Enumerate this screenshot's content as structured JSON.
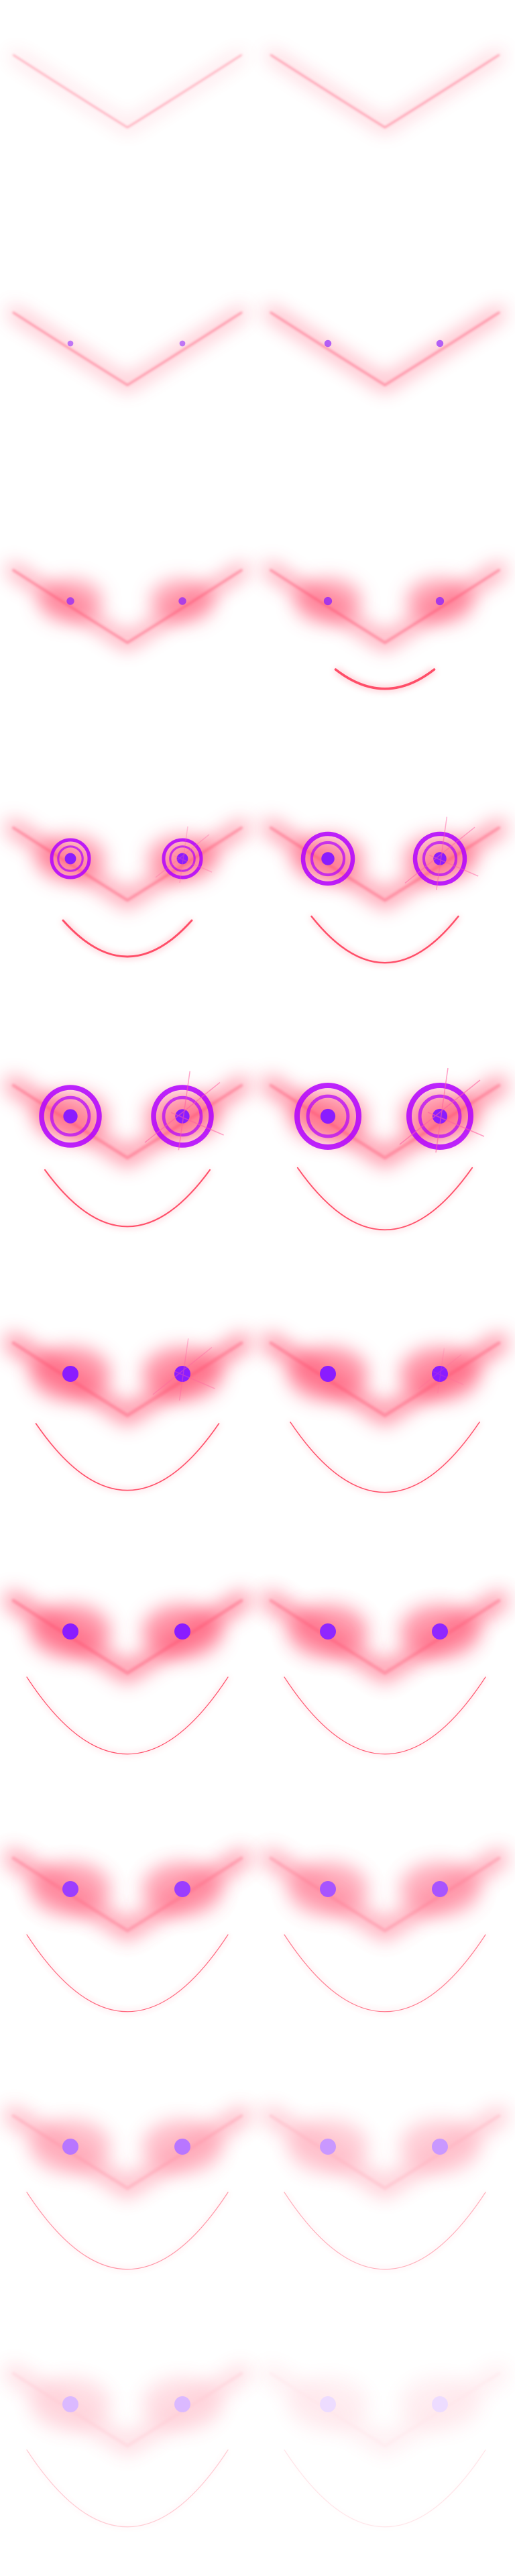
{
  "sheet": {
    "layout": "sprite-sheet",
    "columns": 2,
    "rows": 10,
    "frame_count": 20
  },
  "colors": {
    "background": "#ffffff",
    "glow": "#ff4d6d",
    "eye": "#8a1cff",
    "ring": "#b000ff",
    "smile": "#ff3d5a",
    "sparkle": "#ff5fa0"
  },
  "frames": [
    {
      "index": 1,
      "brow": 0.2,
      "eye_dot": 0.0,
      "ring": 0.0,
      "smile": 0.0,
      "sparkle": 0.0,
      "fade": 1.0
    },
    {
      "index": 2,
      "brow": 0.35,
      "eye_dot": 0.0,
      "ring": 0.0,
      "smile": 0.0,
      "sparkle": 0.0,
      "fade": 1.0
    },
    {
      "index": 3,
      "brow": 0.5,
      "eye_dot": 0.15,
      "ring": 0.0,
      "smile": 0.0,
      "sparkle": 0.0,
      "fade": 1.0
    },
    {
      "index": 4,
      "brow": 0.6,
      "eye_dot": 0.25,
      "ring": 0.0,
      "smile": 0.0,
      "sparkle": 0.0,
      "fade": 1.0
    },
    {
      "index": 5,
      "brow": 0.7,
      "eye_dot": 0.3,
      "ring": 0.0,
      "smile": 0.0,
      "sparkle": 0.0,
      "fade": 1.0
    },
    {
      "index": 6,
      "brow": 0.75,
      "eye_dot": 0.35,
      "ring": 0.0,
      "smile": 0.15,
      "sparkle": 0.0,
      "fade": 1.0
    },
    {
      "index": 7,
      "brow": 0.8,
      "eye_dot": 0.6,
      "ring": 0.4,
      "smile": 0.4,
      "sparkle": 0.5,
      "fade": 1.0
    },
    {
      "index": 8,
      "brow": 0.85,
      "eye_dot": 0.75,
      "ring": 0.7,
      "smile": 0.55,
      "sparkle": 0.8,
      "fade": 1.0
    },
    {
      "index": 9,
      "brow": 0.9,
      "eye_dot": 0.85,
      "ring": 0.9,
      "smile": 0.7,
      "sparkle": 0.9,
      "fade": 1.0
    },
    {
      "index": 10,
      "brow": 0.95,
      "eye_dot": 0.9,
      "ring": 1.0,
      "smile": 0.78,
      "sparkle": 1.0,
      "fade": 1.0
    },
    {
      "index": 11,
      "brow": 1.0,
      "eye_dot": 1.0,
      "ring": 0.0,
      "smile": 0.85,
      "sparkle": 0.6,
      "fade": 1.0
    },
    {
      "index": 12,
      "brow": 1.0,
      "eye_dot": 1.0,
      "ring": 0.0,
      "smile": 0.9,
      "sparkle": 0.3,
      "fade": 1.0
    },
    {
      "index": 13,
      "brow": 1.0,
      "eye_dot": 1.0,
      "ring": 0.0,
      "smile": 1.0,
      "sparkle": 0.0,
      "fade": 1.0
    },
    {
      "index": 14,
      "brow": 1.0,
      "eye_dot": 1.0,
      "ring": 0.0,
      "smile": 1.0,
      "sparkle": 0.0,
      "fade": 0.95
    },
    {
      "index": 15,
      "brow": 1.0,
      "eye_dot": 1.0,
      "ring": 0.0,
      "smile": 1.0,
      "sparkle": 0.0,
      "fade": 0.85
    },
    {
      "index": 16,
      "brow": 1.0,
      "eye_dot": 1.0,
      "ring": 0.0,
      "smile": 1.0,
      "sparkle": 0.0,
      "fade": 0.75
    },
    {
      "index": 17,
      "brow": 1.0,
      "eye_dot": 1.0,
      "ring": 0.0,
      "smile": 1.0,
      "sparkle": 0.0,
      "fade": 0.6
    },
    {
      "index": 18,
      "brow": 1.0,
      "eye_dot": 1.0,
      "ring": 0.0,
      "smile": 1.0,
      "sparkle": 0.0,
      "fade": 0.45
    },
    {
      "index": 19,
      "brow": 1.0,
      "eye_dot": 1.0,
      "ring": 0.0,
      "smile": 1.0,
      "sparkle": 0.0,
      "fade": 0.3
    },
    {
      "index": 20,
      "brow": 1.0,
      "eye_dot": 1.0,
      "ring": 0.0,
      "smile": 1.0,
      "sparkle": 0.0,
      "fade": 0.15
    }
  ]
}
